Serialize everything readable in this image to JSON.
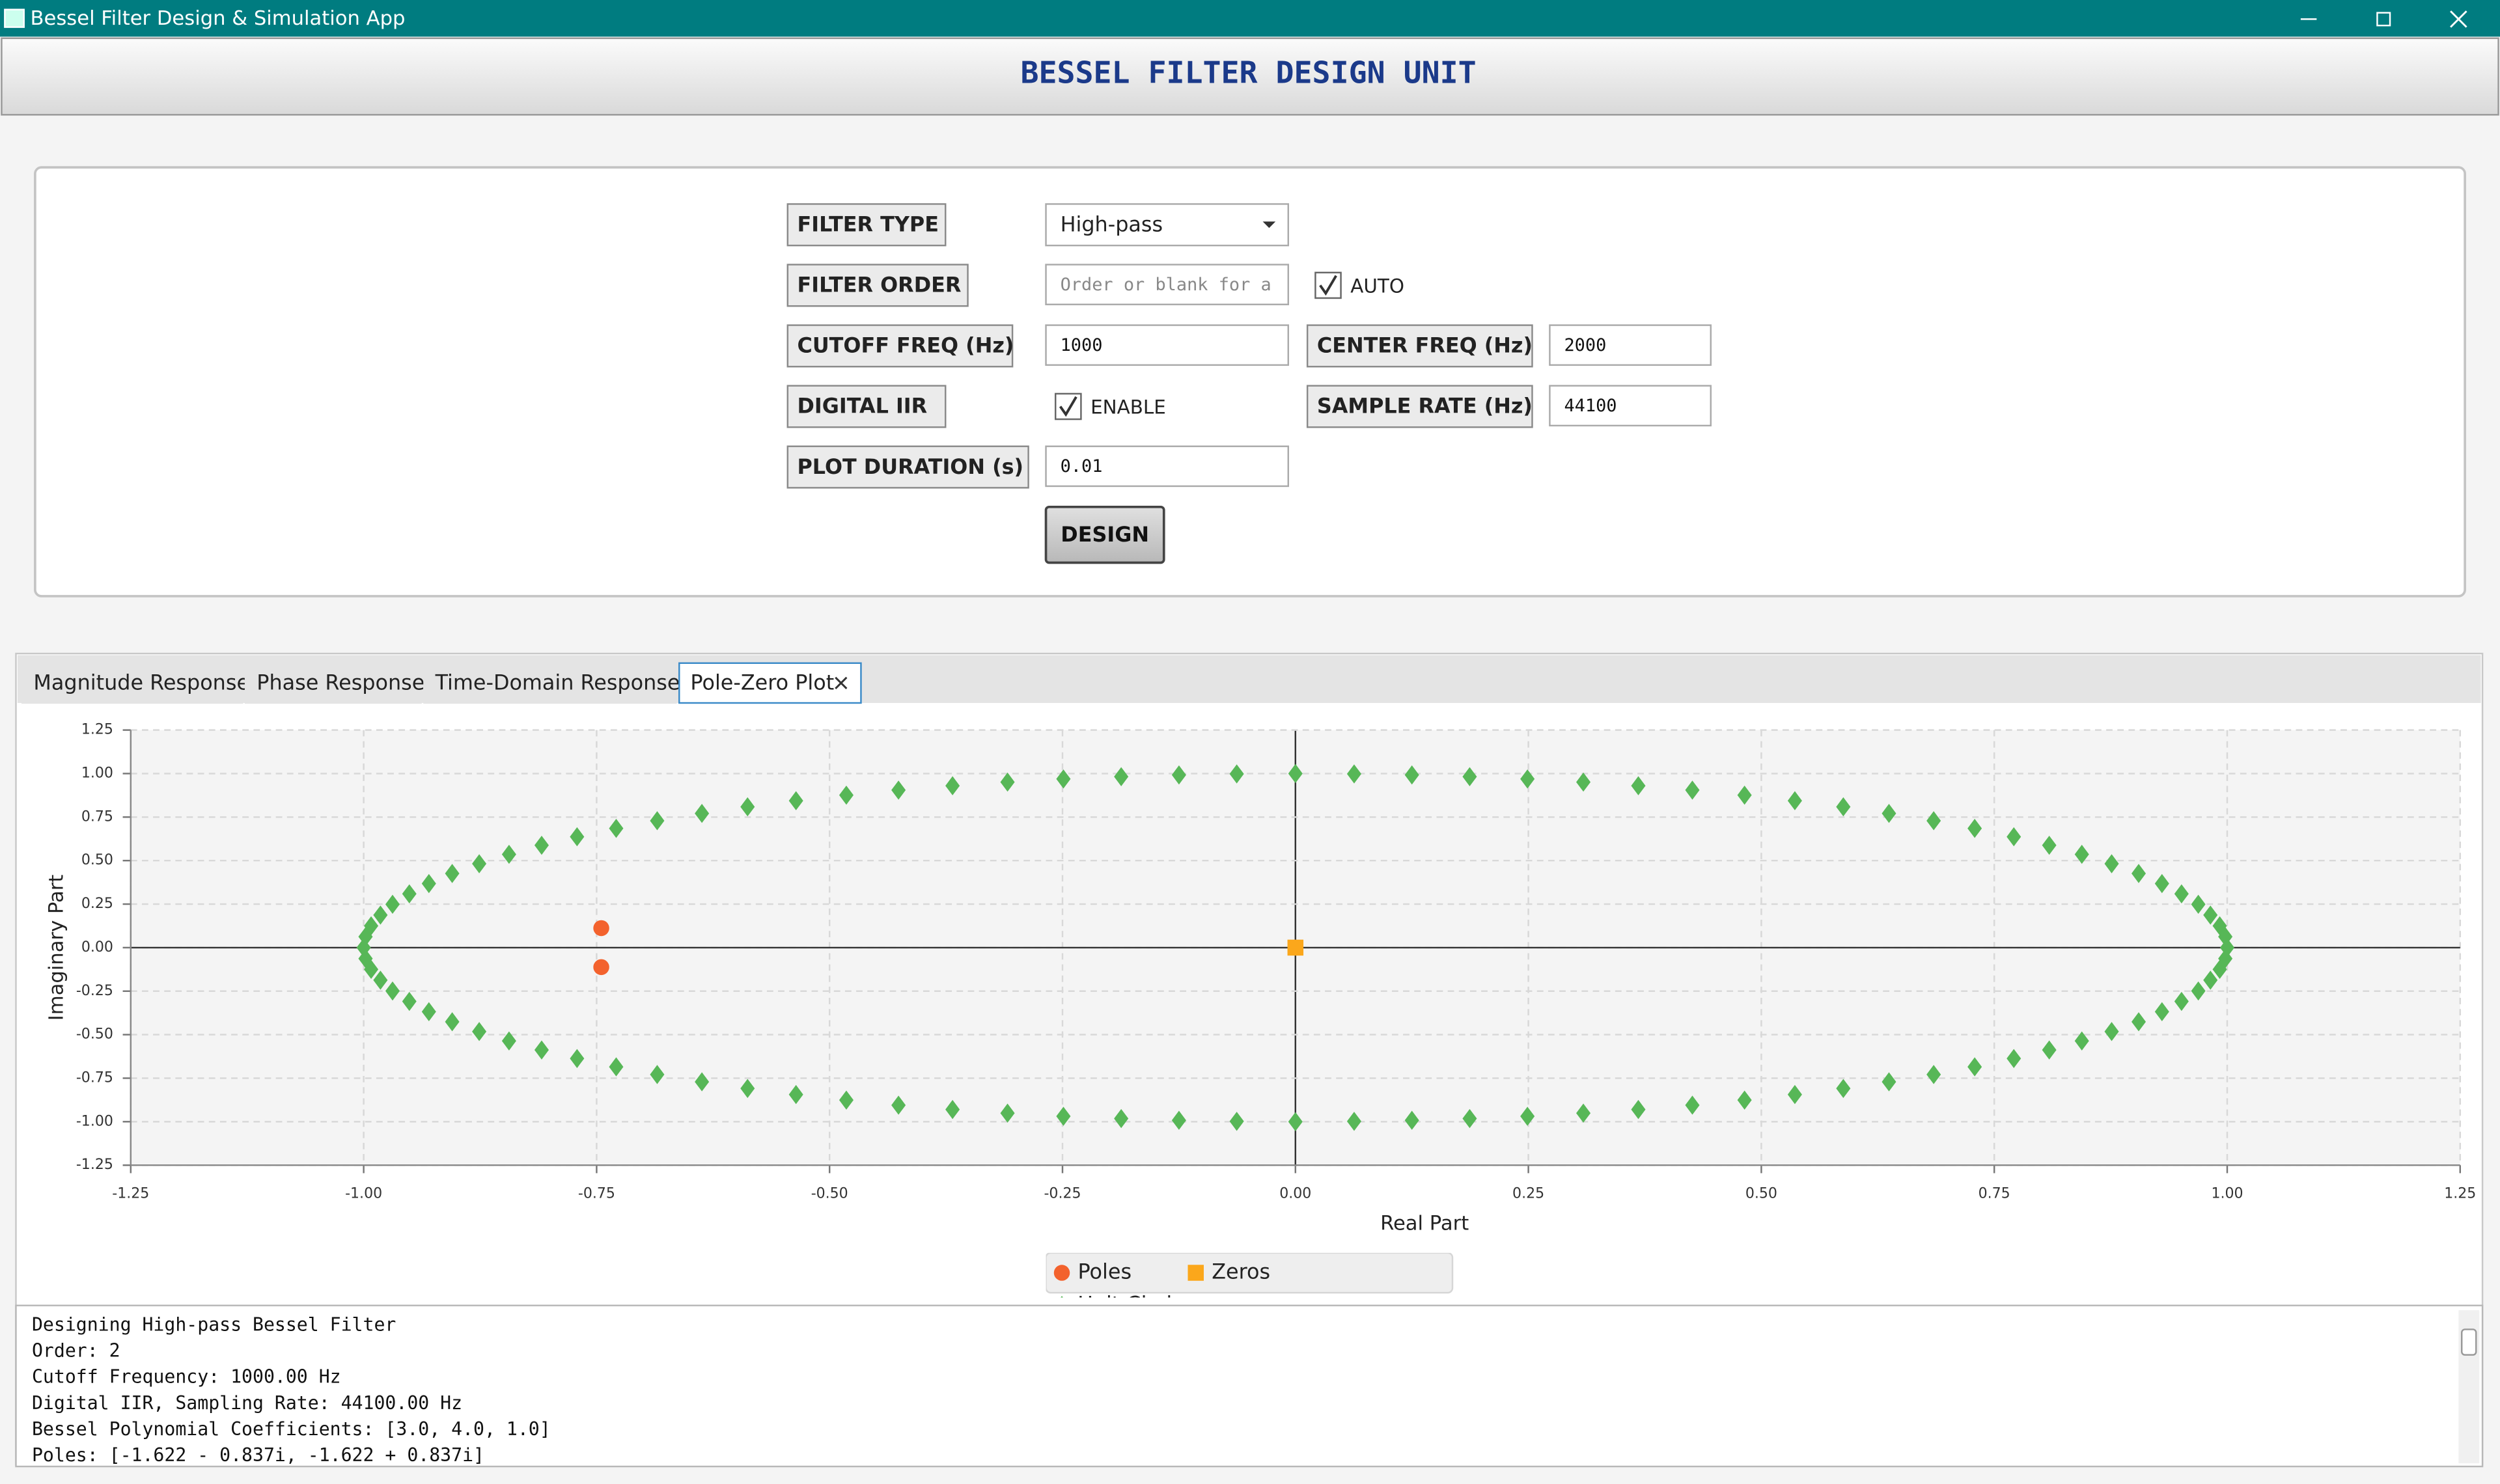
{
  "window": {
    "title": "Bessel Filter Design & Simulation App"
  },
  "header": {
    "title": "BESSEL FILTER DESIGN UNIT"
  },
  "form": {
    "filter_type": {
      "label": "FILTER TYPE",
      "value": "High-pass"
    },
    "filter_order": {
      "label": "FILTER ORDER",
      "placeholder": "Order or blank for a",
      "auto_label": "AUTO",
      "auto_checked": true
    },
    "cutoff_freq": {
      "label": "CUTOFF FREQ (Hz)",
      "value": "1000"
    },
    "center_freq": {
      "label": "CENTER FREQ (Hz)",
      "value": "2000"
    },
    "digital_iir": {
      "label": "DIGITAL IIR",
      "enable_label": "ENABLE",
      "enabled": true
    },
    "sample_rate": {
      "label": "SAMPLE RATE (Hz)",
      "value": "44100"
    },
    "plot_duration": {
      "label": "PLOT DURATION (s)",
      "value": "0.01"
    },
    "design_button": "DESIGN"
  },
  "tabs": {
    "items": [
      "Magnitude Response",
      "Phase Response",
      "Time-Domain Response",
      "Pole-Zero Plot"
    ],
    "selected": 3
  },
  "chart_data": {
    "type": "scatter",
    "x_label": "Real Part",
    "y_label": "Imaginary Part",
    "xlim": [
      -1.25,
      1.25
    ],
    "ylim": [
      -1.25,
      1.25
    ],
    "xticks": [
      -1.25,
      {
        "value": -1,
        "label": "-1.00"
      },
      -0.75,
      {
        "value": -0.5,
        "label": "-0.50"
      },
      -0.25,
      {
        "value": 0,
        "label": "0.00"
      },
      0.25,
      {
        "value": 0.5,
        "label": "0.50"
      },
      0.75,
      {
        "value": 1,
        "label": "1.00"
      },
      1.25
    ],
    "yticks": [
      -1.25,
      {
        "value": -1,
        "label": "-1.00"
      },
      -0.75,
      {
        "value": -0.5,
        "label": "-0.50"
      },
      -0.25,
      {
        "value": 0,
        "label": "0.00"
      },
      0.25,
      {
        "value": 0.5,
        "label": "0.50"
      },
      0.75,
      {
        "value": 1,
        "label": "1.00"
      },
      1.25
    ],
    "grid": true,
    "legend": "bottom",
    "series": [
      {
        "name": "Poles",
        "color": "#f3622d",
        "marker": "circle",
        "x": [
          -0.745,
          -0.745
        ],
        "values": [
          0.112,
          -0.112
        ]
      },
      {
        "name": "Zeros",
        "color": "#fba71b",
        "marker": "square",
        "x": [
          0
        ],
        "values": [
          0
        ]
      },
      {
        "name": "Unit Circle",
        "color": "#57b757",
        "marker": "diamond",
        "x": [
          1,
          0.998,
          0.992,
          0.982,
          0.969,
          0.951,
          0.93,
          0.905,
          0.876,
          0.844,
          0.809,
          0.771,
          0.729,
          0.685,
          0.637,
          0.588,
          0.536,
          0.482,
          0.426,
          0.368,
          0.309,
          0.249,
          0.187,
          0.125,
          0.063,
          0,
          -0.063,
          -0.125,
          -0.187,
          -0.249,
          -0.309,
          -0.368,
          -0.426,
          -0.482,
          -0.536,
          -0.588,
          -0.637,
          -0.685,
          -0.729,
          -0.771,
          -0.809,
          -0.844,
          -0.876,
          -0.905,
          -0.93,
          -0.951,
          -0.969,
          -0.982,
          -0.992,
          -0.998,
          -1,
          -0.998,
          -0.992,
          -0.982,
          -0.969,
          -0.951,
          -0.93,
          -0.905,
          -0.876,
          -0.844,
          -0.809,
          -0.771,
          -0.729,
          -0.685,
          -0.637,
          -0.588,
          -0.536,
          -0.482,
          -0.426,
          -0.368,
          -0.309,
          -0.249,
          -0.187,
          -0.125,
          -0.063,
          0,
          0.063,
          0.125,
          0.187,
          0.249,
          0.309,
          0.368,
          0.426,
          0.482,
          0.536,
          0.588,
          0.637,
          0.685,
          0.729,
          0.771,
          0.809,
          0.844,
          0.876,
          0.905,
          0.93,
          0.951,
          0.969,
          0.982,
          0.992,
          0.998
        ],
        "values": [
          0,
          0.063,
          0.125,
          0.187,
          0.249,
          0.309,
          0.368,
          0.426,
          0.482,
          0.536,
          0.588,
          0.637,
          0.685,
          0.729,
          0.771,
          0.809,
          0.844,
          0.876,
          0.905,
          0.93,
          0.951,
          0.969,
          0.982,
          0.992,
          0.998,
          1,
          0.998,
          0.992,
          0.982,
          0.969,
          0.951,
          0.93,
          0.905,
          0.876,
          0.844,
          0.809,
          0.771,
          0.729,
          0.685,
          0.637,
          0.588,
          0.536,
          0.482,
          0.426,
          0.368,
          0.309,
          0.249,
          0.187,
          0.125,
          0.063,
          0,
          -0.063,
          -0.125,
          -0.187,
          -0.249,
          -0.309,
          -0.368,
          -0.426,
          -0.482,
          -0.536,
          -0.588,
          -0.637,
          -0.685,
          -0.729,
          -0.771,
          -0.809,
          -0.844,
          -0.876,
          -0.905,
          -0.93,
          -0.951,
          -0.969,
          -0.982,
          -0.992,
          -0.998,
          -1,
          -0.998,
          -0.992,
          -0.982,
          -0.969,
          -0.951,
          -0.93,
          -0.905,
          -0.876,
          -0.844,
          -0.809,
          -0.771,
          -0.729,
          -0.685,
          -0.637,
          -0.588,
          -0.536,
          -0.482,
          -0.426,
          -0.368,
          -0.309,
          -0.249,
          -0.187,
          -0.125,
          -0.063
        ]
      }
    ]
  },
  "console": {
    "lines": [
      "Designing High-pass Bessel Filter",
      "Order: 2",
      "Cutoff Frequency: 1000.00 Hz",
      "Digital IIR, Sampling Rate: 44100.00 Hz",
      "Bessel Polynomial Coefficients: [3.0, 4.0, 1.0]",
      "Poles: [-1.622 - 0.837i, -1.622 + 0.837i]"
    ]
  }
}
